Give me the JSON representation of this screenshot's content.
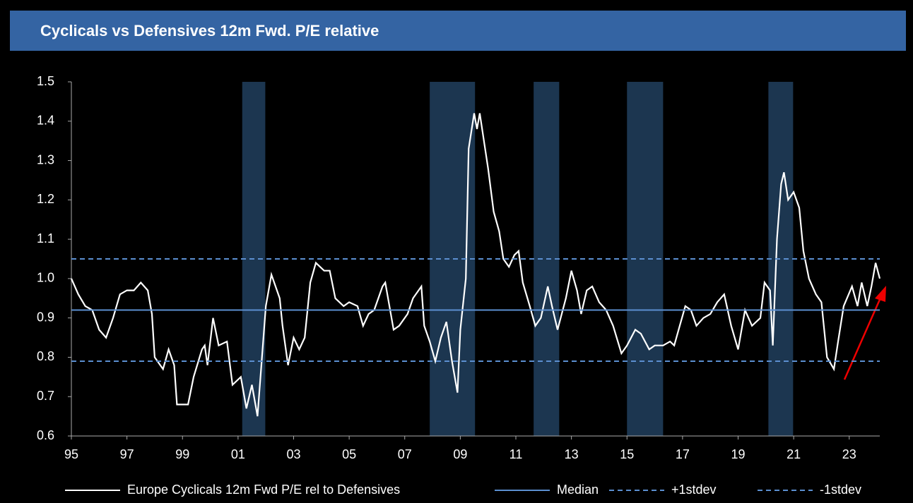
{
  "chart_data": {
    "type": "line",
    "title": "Cyclicals vs Defensives 12m Fwd. P/E relative",
    "x": [
      1995.0,
      1995.25,
      1995.5,
      1995.75,
      1996.0,
      1996.25,
      1996.5,
      1996.75,
      1997.0,
      1997.25,
      1997.5,
      1997.75,
      1997.9,
      1998.0,
      1998.3,
      1998.5,
      1998.7,
      1998.8,
      1999.2,
      1999.4,
      1999.7,
      1999.8,
      1999.9,
      2000.1,
      2000.3,
      2000.6,
      2000.8,
      2001.1,
      2001.3,
      2001.5,
      2001.7,
      2002.0,
      2002.2,
      2002.5,
      2002.6,
      2002.8,
      2003.0,
      2003.2,
      2003.4,
      2003.6,
      2003.8,
      2004.1,
      2004.3,
      2004.5,
      2004.8,
      2005.0,
      2005.3,
      2005.5,
      2005.7,
      2005.9,
      2006.2,
      2006.3,
      2006.6,
      2006.8,
      2007.1,
      2007.3,
      2007.6,
      2007.7,
      2007.9,
      2008.1,
      2008.3,
      2008.5,
      2008.7,
      2008.9,
      2009.0,
      2009.2,
      2009.3,
      2009.5,
      2009.6,
      2009.7,
      2010.0,
      2010.2,
      2010.4,
      2010.55,
      2010.75,
      2010.95,
      2011.1,
      2011.25,
      2011.5,
      2011.7,
      2011.9,
      2012.15,
      2012.3,
      2012.5,
      2012.8,
      2013.0,
      2013.2,
      2013.35,
      2013.55,
      2013.75,
      2014.0,
      2014.25,
      2014.5,
      2014.8,
      2015.0,
      2015.3,
      2015.5,
      2015.8,
      2016.0,
      2016.3,
      2016.55,
      2016.7,
      2016.9,
      2017.1,
      2017.3,
      2017.5,
      2017.75,
      2018.0,
      2018.25,
      2018.5,
      2018.75,
      2019.0,
      2019.25,
      2019.5,
      2019.8,
      2019.95,
      2020.15,
      2020.25,
      2020.4,
      2020.55,
      2020.65,
      2020.8,
      2021.0,
      2021.2,
      2021.35,
      2021.55,
      2021.8,
      2022.0,
      2022.2,
      2022.45,
      2022.6,
      2022.8,
      2023.1,
      2023.3,
      2023.45,
      2023.65,
      2023.8,
      2023.95,
      2024.1
    ],
    "series": [
      {
        "name": "Europe Cyclicals 12m Fwd P/E rel to Defensives",
        "color": "#ffffff",
        "values": [
          1.0,
          0.96,
          0.93,
          0.92,
          0.87,
          0.85,
          0.9,
          0.96,
          0.97,
          0.97,
          0.99,
          0.97,
          0.91,
          0.8,
          0.77,
          0.82,
          0.78,
          0.68,
          0.68,
          0.75,
          0.82,
          0.83,
          0.78,
          0.9,
          0.83,
          0.84,
          0.73,
          0.75,
          0.67,
          0.73,
          0.65,
          0.93,
          1.01,
          0.95,
          0.88,
          0.78,
          0.85,
          0.82,
          0.85,
          0.99,
          1.04,
          1.02,
          1.02,
          0.95,
          0.93,
          0.94,
          0.93,
          0.88,
          0.91,
          0.92,
          0.98,
          0.99,
          0.87,
          0.88,
          0.91,
          0.95,
          0.98,
          0.88,
          0.84,
          0.79,
          0.85,
          0.89,
          0.79,
          0.71,
          0.87,
          1.0,
          1.33,
          1.42,
          1.38,
          1.42,
          1.28,
          1.17,
          1.12,
          1.05,
          1.03,
          1.06,
          1.07,
          0.99,
          0.93,
          0.88,
          0.9,
          0.98,
          0.93,
          0.87,
          0.95,
          1.02,
          0.97,
          0.91,
          0.97,
          0.98,
          0.94,
          0.92,
          0.88,
          0.81,
          0.83,
          0.87,
          0.86,
          0.82,
          0.83,
          0.83,
          0.84,
          0.83,
          0.88,
          0.93,
          0.92,
          0.88,
          0.9,
          0.91,
          0.94,
          0.96,
          0.88,
          0.82,
          0.92,
          0.88,
          0.9,
          0.99,
          0.97,
          0.83,
          1.1,
          1.24,
          1.27,
          1.2,
          1.22,
          1.18,
          1.07,
          1.0,
          0.96,
          0.94,
          0.8,
          0.77,
          0.84,
          0.93,
          0.98,
          0.93,
          0.99,
          0.93,
          0.98,
          1.04,
          1.0
        ]
      },
      {
        "name": "Median",
        "color": "#5b8fd0",
        "level": 0.92
      },
      {
        "name": "+1stdev",
        "color": "#5b8fd0",
        "level": 1.05,
        "dashed": true
      },
      {
        "name": "-1stdev",
        "color": "#5b8fd0",
        "level": 0.79,
        "dashed": true
      }
    ],
    "shaded_regions": [
      [
        2001.15,
        2001.98
      ],
      [
        2007.9,
        2009.53
      ],
      [
        2011.64,
        2012.56
      ],
      [
        2015.0,
        2016.3
      ],
      [
        2020.09,
        2020.98
      ]
    ],
    "shade_color": "#1c3650",
    "xlim": [
      1995,
      2024.1
    ],
    "xticks": [
      {
        "value": 1995,
        "label": "95"
      },
      {
        "value": 1997,
        "label": "97"
      },
      {
        "value": 1999,
        "label": "99"
      },
      {
        "value": 2001,
        "label": "01"
      },
      {
        "value": 2003,
        "label": "03"
      },
      {
        "value": 2005,
        "label": "05"
      },
      {
        "value": 2007,
        "label": "07"
      },
      {
        "value": 2009,
        "label": "09"
      },
      {
        "value": 2011,
        "label": "11"
      },
      {
        "value": 2013,
        "label": "13"
      },
      {
        "value": 2015,
        "label": "15"
      },
      {
        "value": 2017,
        "label": "17"
      },
      {
        "value": 2019,
        "label": "19"
      },
      {
        "value": 2021,
        "label": "21"
      },
      {
        "value": 2023,
        "label": "23"
      }
    ],
    "ylim": [
      0.6,
      1.5
    ],
    "yticks": [
      {
        "value": 0.6,
        "label": "0.6"
      },
      {
        "value": 0.7,
        "label": "0.7"
      },
      {
        "value": 0.8,
        "label": "0.8"
      },
      {
        "value": 0.9,
        "label": "0.9"
      },
      {
        "value": 1.0,
        "label": "1.0"
      },
      {
        "value": 1.1,
        "label": "1.1"
      },
      {
        "value": 1.2,
        "label": "1.2"
      },
      {
        "value": 1.3,
        "label": "1.3"
      },
      {
        "value": 1.4,
        "label": "1.4"
      },
      {
        "value": 1.5,
        "label": "1.5"
      }
    ],
    "grid": false,
    "legend": "bottom"
  }
}
